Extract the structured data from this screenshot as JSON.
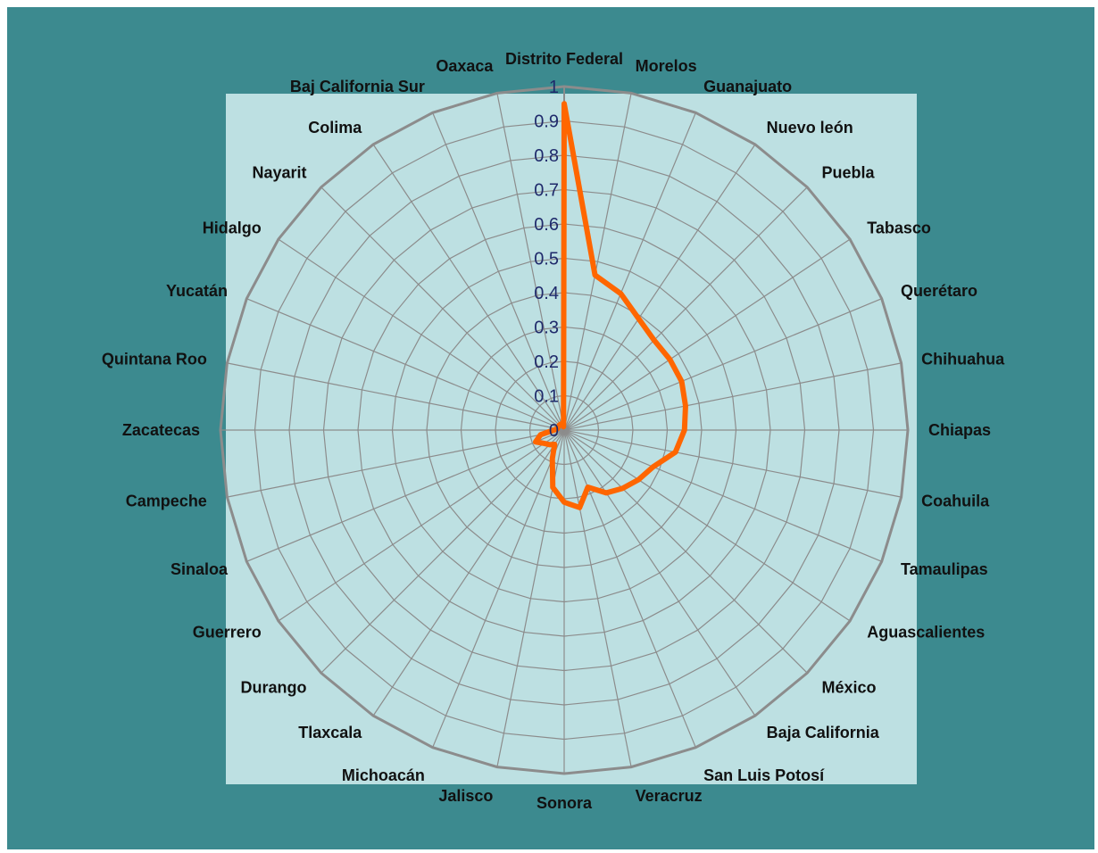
{
  "colors": {
    "frame_background": "#3c8a8f",
    "plot_background": "#bde0e2",
    "grid": "#8c8c8c",
    "series_line": "#ff6600",
    "category_text": "#111111",
    "tick_text": "#1f2a6b"
  },
  "chart_data": {
    "type": "radar",
    "title": "",
    "grid": true,
    "rmin": 0,
    "rmax": 1,
    "ticks": [
      0,
      0.1,
      0.2,
      0.3,
      0.4,
      0.5,
      0.6,
      0.7,
      0.8,
      0.9,
      1
    ],
    "tick_labels": [
      "0",
      "0.1",
      "0.2",
      "0.3",
      "0.4",
      "0.5",
      "0.6",
      "0.7",
      "0.8",
      "0.9",
      "1"
    ],
    "categories": [
      "Distrito Federal",
      "Morelos",
      "Guanajuato",
      "Nuevo león",
      "Puebla",
      "Tabasco",
      "Querétaro",
      "Chihuahua",
      "Chiapas",
      "Coahuila",
      "Tamaulipas",
      "Aguascalientes",
      "México",
      "Baja California",
      "San Luis Potosí",
      "Veracruz",
      "Sonora",
      "Jalisco",
      "Michoacán",
      "Tlaxcala",
      "Durango",
      "Guerrero",
      "Sinaloa",
      "Campeche",
      "Zacatecas",
      "Quintana Roo",
      "Yucatán",
      "Hidalgo",
      "Nayarit",
      "Colima",
      "Baj California Sur",
      "Oaxaca"
    ],
    "series": [
      {
        "values": [
          0.95,
          0.46,
          0.43,
          0.39,
          0.37,
          0.37,
          0.37,
          0.36,
          0.35,
          0.33,
          0.28,
          0.26,
          0.24,
          0.22,
          0.18,
          0.23,
          0.21,
          0.17,
          0.09,
          0.05,
          0.06,
          0.07,
          0.09,
          0.07,
          0.03,
          0.02,
          0.02,
          0.02,
          0.02,
          0.02,
          0.02,
          0.01
        ]
      }
    ]
  }
}
